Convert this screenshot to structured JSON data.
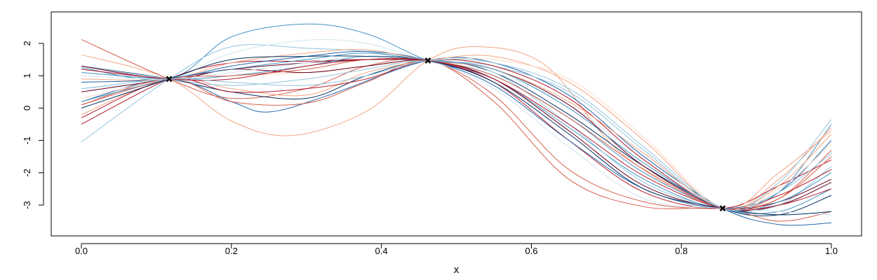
{
  "chart_data": {
    "type": "line",
    "title": "",
    "xlabel": "x",
    "ylabel": "",
    "xlim": [
      0,
      1
    ],
    "ylim": [
      -3.6,
      2.7
    ],
    "grid": false,
    "legend": "none",
    "x_ticks": [
      0.0,
      0.2,
      0.4,
      0.6,
      0.8,
      1.0
    ],
    "x_tick_labels": [
      "0.0",
      "0.2",
      "0.4",
      "0.6",
      "0.8",
      "1.0"
    ],
    "y_ticks": [
      -3,
      -2,
      -1,
      0,
      1,
      2
    ],
    "y_tick_labels": [
      "-3",
      "-2",
      "-1",
      "0",
      "1",
      "2"
    ],
    "palette": [
      "#67001f",
      "#b2182b",
      "#d6604d",
      "#f4a582",
      "#fddbc7",
      "#d1e5f0",
      "#92c5de",
      "#4393c3",
      "#2166ac",
      "#053061"
    ],
    "observed_points": [
      {
        "x": 0.117,
        "y": 0.9
      },
      {
        "x": 0.462,
        "y": 1.47
      },
      {
        "x": 0.855,
        "y": -3.1
      }
    ],
    "series": [
      {
        "color": "#4393c3",
        "x": [
          0,
          0.117,
          0.2,
          0.3,
          0.38,
          0.462,
          0.55,
          0.65,
          0.75,
          0.855,
          0.93,
          1.0
        ],
        "y": [
          1.25,
          0.9,
          2.2,
          2.6,
          2.3,
          1.47,
          0.9,
          -0.6,
          -2.2,
          -3.1,
          -2.6,
          -0.5
        ]
      },
      {
        "color": "#f4a582",
        "x": [
          0,
          0.117,
          0.2,
          0.28,
          0.38,
          0.462,
          0.53,
          0.62,
          0.72,
          0.855,
          0.93,
          1.0
        ],
        "y": [
          1.65,
          0.9,
          -0.4,
          -0.85,
          -0.1,
          1.47,
          1.9,
          1.3,
          -1.4,
          -3.1,
          -2.2,
          -0.6
        ]
      },
      {
        "color": "#d6604d",
        "x": [
          0,
          0.117,
          0.2,
          0.3,
          0.38,
          0.462,
          0.55,
          0.65,
          0.75,
          0.855,
          0.93,
          1.0
        ],
        "y": [
          2.12,
          0.9,
          0.3,
          0.6,
          1.3,
          1.47,
          0.4,
          -1.9,
          -2.9,
          -3.1,
          -2.8,
          -1.3
        ]
      },
      {
        "color": "#053061",
        "x": [
          0,
          0.117,
          0.2,
          0.3,
          0.38,
          0.462,
          0.55,
          0.65,
          0.75,
          0.855,
          0.93,
          1.0
        ],
        "y": [
          1.3,
          0.9,
          0.5,
          0.3,
          1.0,
          1.47,
          1.1,
          -0.2,
          -1.8,
          -3.1,
          -3.3,
          -2.7
        ]
      },
      {
        "color": "#2166ac",
        "x": [
          0,
          0.117,
          0.2,
          0.25,
          0.33,
          0.462,
          0.55,
          0.65,
          0.75,
          0.855,
          0.93,
          1.0
        ],
        "y": [
          0.2,
          0.9,
          0.2,
          -0.12,
          0.4,
          1.47,
          1.4,
          0.4,
          -1.5,
          -3.1,
          -3.6,
          -3.55
        ]
      },
      {
        "color": "#92c5de",
        "x": [
          0,
          0.117,
          0.2,
          0.3,
          0.38,
          0.462,
          0.55,
          0.65,
          0.75,
          0.855,
          0.93,
          1.0
        ],
        "y": [
          -1.05,
          0.9,
          1.9,
          1.85,
          1.75,
          1.47,
          1.3,
          0.5,
          -1.3,
          -3.1,
          -2.3,
          -0.35
        ]
      },
      {
        "color": "#d1e5f0",
        "x": [
          0,
          0.117,
          0.2,
          0.3,
          0.38,
          0.462,
          0.55,
          0.65,
          0.75,
          0.855,
          0.93,
          1.0
        ],
        "y": [
          0.6,
          0.9,
          1.7,
          2.1,
          2.0,
          1.47,
          1.1,
          0.1,
          -1.6,
          -3.1,
          -2.9,
          -2.0
        ]
      },
      {
        "color": "#b2182b",
        "x": [
          0,
          0.117,
          0.2,
          0.3,
          0.38,
          0.462,
          0.55,
          0.65,
          0.75,
          0.855,
          0.93,
          1.0
        ],
        "y": [
          -0.5,
          0.9,
          1.4,
          1.45,
          1.5,
          1.47,
          0.8,
          -1.0,
          -2.6,
          -3.1,
          -2.4,
          -1.6
        ]
      },
      {
        "color": "#67001f",
        "x": [
          0,
          0.117,
          0.2,
          0.3,
          0.38,
          0.462,
          0.55,
          0.65,
          0.75,
          0.855,
          0.93,
          1.0
        ],
        "y": [
          0.5,
          0.9,
          1.2,
          1.4,
          1.5,
          1.47,
          1.2,
          0.1,
          -1.8,
          -3.1,
          -3.0,
          -2.3
        ]
      },
      {
        "color": "#d6604d",
        "x": [
          0,
          0.117,
          0.2,
          0.3,
          0.38,
          0.462,
          0.55,
          0.65,
          0.75,
          0.855,
          0.93,
          1.0
        ],
        "y": [
          0.1,
          0.9,
          0.2,
          0.15,
          0.8,
          1.47,
          0.2,
          -2.2,
          -3.05,
          -3.1,
          -3.5,
          -3.2
        ]
      },
      {
        "color": "#f4a582",
        "x": [
          0,
          0.117,
          0.2,
          0.3,
          0.38,
          0.462,
          0.55,
          0.65,
          0.75,
          0.855,
          0.93,
          1.0
        ],
        "y": [
          -0.2,
          0.9,
          0.6,
          0.4,
          1.1,
          1.47,
          1.6,
          0.8,
          -1.0,
          -3.1,
          -2.0,
          -0.7
        ]
      },
      {
        "color": "#4393c3",
        "x": [
          0,
          0.117,
          0.2,
          0.3,
          0.38,
          0.462,
          0.55,
          0.65,
          0.75,
          0.855,
          0.93,
          1.0
        ],
        "y": [
          1.1,
          0.9,
          1.0,
          1.3,
          1.6,
          1.47,
          1.0,
          -0.3,
          -2.0,
          -3.1,
          -3.2,
          -2.5
        ]
      },
      {
        "color": "#2166ac",
        "x": [
          0,
          0.117,
          0.2,
          0.3,
          0.38,
          0.462,
          0.55,
          0.65,
          0.75,
          0.855,
          0.93,
          1.0
        ],
        "y": [
          0.8,
          0.9,
          1.3,
          1.6,
          1.75,
          1.47,
          0.7,
          -1.0,
          -2.5,
          -3.1,
          -2.6,
          -1.0
        ]
      },
      {
        "color": "#fddbc7",
        "x": [
          0,
          0.117,
          0.2,
          0.3,
          0.38,
          0.462,
          0.55,
          0.65,
          0.75,
          0.855,
          0.93,
          1.0
        ],
        "y": [
          0.3,
          0.9,
          1.0,
          1.1,
          1.3,
          1.47,
          1.5,
          0.9,
          -0.9,
          -3.1,
          -2.5,
          -1.1
        ]
      },
      {
        "color": "#92c5de",
        "x": [
          0,
          0.117,
          0.2,
          0.3,
          0.38,
          0.462,
          0.55,
          0.65,
          0.75,
          0.855,
          0.93,
          1.0
        ],
        "y": [
          1.3,
          0.9,
          0.7,
          0.9,
          1.2,
          1.47,
          1.1,
          -0.5,
          -2.3,
          -3.1,
          -3.0,
          -1.8
        ]
      },
      {
        "color": "#b2182b",
        "x": [
          0,
          0.117,
          0.2,
          0.3,
          0.38,
          0.462,
          0.55,
          0.65,
          0.75,
          0.855,
          0.93,
          1.0
        ],
        "y": [
          -0.3,
          0.9,
          0.5,
          0.6,
          0.9,
          1.47,
          1.3,
          0.3,
          -1.6,
          -3.1,
          -2.7,
          -1.9
        ]
      },
      {
        "color": "#67001f",
        "x": [
          0,
          0.117,
          0.2,
          0.3,
          0.38,
          0.462,
          0.55,
          0.65,
          0.75,
          0.855,
          0.93,
          1.0
        ],
        "y": [
          1.3,
          0.9,
          1.2,
          1.1,
          1.3,
          1.47,
          0.9,
          -0.7,
          -2.4,
          -3.1,
          -2.9,
          -2.2
        ]
      },
      {
        "color": "#d1e5f0",
        "x": [
          0,
          0.117,
          0.2,
          0.3,
          0.38,
          0.462,
          0.55,
          0.65,
          0.75,
          0.855,
          0.93,
          1.0
        ],
        "y": [
          1.0,
          0.9,
          1.1,
          1.4,
          1.6,
          1.47,
          0.6,
          -1.2,
          -2.8,
          -3.1,
          -3.2,
          -3.3
        ]
      },
      {
        "color": "#f4a582",
        "x": [
          0,
          0.117,
          0.2,
          0.3,
          0.38,
          0.462,
          0.55,
          0.65,
          0.75,
          0.855,
          0.93,
          1.0
        ],
        "y": [
          0.9,
          0.9,
          1.4,
          1.7,
          1.8,
          1.47,
          1.2,
          0.2,
          -1.4,
          -3.1,
          -2.4,
          -0.8
        ]
      },
      {
        "color": "#053061",
        "x": [
          0,
          0.117,
          0.2,
          0.3,
          0.38,
          0.462,
          0.55,
          0.65,
          0.75,
          0.855,
          0.93,
          1.0
        ],
        "y": [
          0.0,
          0.9,
          1.5,
          1.6,
          1.6,
          1.47,
          0.8,
          -0.8,
          -2.5,
          -3.1,
          -3.3,
          -3.2
        ]
      },
      {
        "color": "#d6604d",
        "x": [
          0,
          0.117,
          0.2,
          0.3,
          0.38,
          0.462,
          0.55,
          0.65,
          0.75,
          0.855,
          0.93,
          1.0
        ],
        "y": [
          0.1,
          0.9,
          1.0,
          1.2,
          1.5,
          1.47,
          1.0,
          -0.3,
          -1.9,
          -3.1,
          -2.8,
          -1.5
        ]
      },
      {
        "color": "#4393c3",
        "x": [
          0,
          0.117,
          0.2,
          0.3,
          0.38,
          0.462,
          0.55,
          0.65,
          0.75,
          0.855,
          0.93,
          1.0
        ],
        "y": [
          0.2,
          0.9,
          1.2,
          1.5,
          1.7,
          1.47,
          1.2,
          0.0,
          -1.7,
          -3.1,
          -2.9,
          -2.0
        ]
      },
      {
        "color": "#b2182b",
        "x": [
          0,
          0.117,
          0.2,
          0.3,
          0.38,
          0.462,
          0.55,
          0.65,
          0.75,
          0.855,
          0.93,
          1.0
        ],
        "y": [
          1.2,
          0.9,
          0.9,
          1.3,
          1.5,
          1.47,
          0.9,
          -0.5,
          -2.1,
          -3.1,
          -3.0,
          -2.5
        ]
      },
      {
        "color": "#92c5de",
        "x": [
          0,
          0.117,
          0.2,
          0.3,
          0.38,
          0.462,
          0.55,
          0.65,
          0.75,
          0.855,
          0.93,
          1.0
        ],
        "y": [
          0.6,
          0.9,
          0.8,
          0.7,
          1.0,
          1.47,
          1.4,
          0.6,
          -1.2,
          -3.1,
          -2.6,
          -1.4
        ]
      }
    ]
  }
}
